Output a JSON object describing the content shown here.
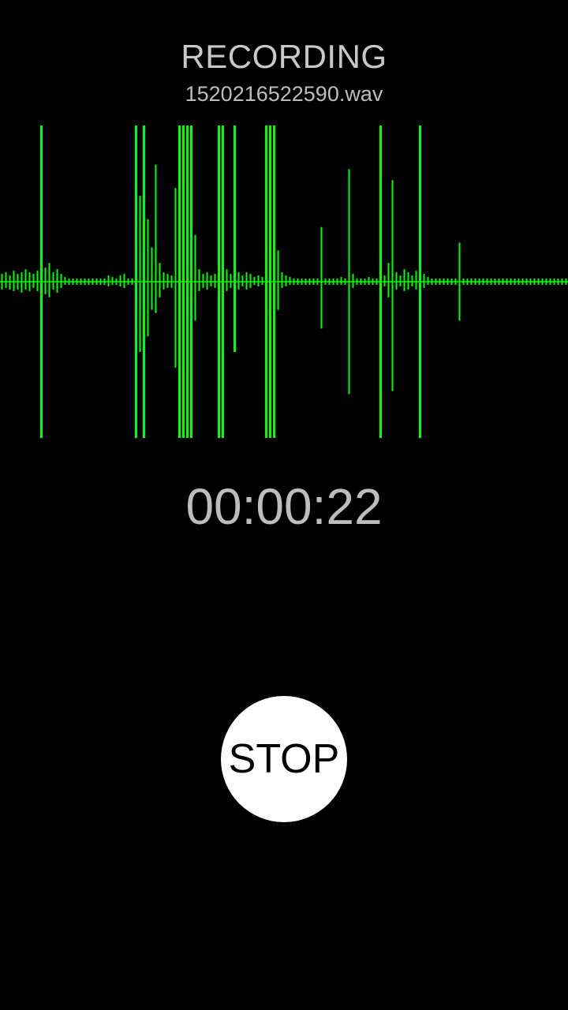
{
  "header": {
    "status": "RECORDING",
    "file_name": "1520216522590.wav"
  },
  "waveform": {
    "color": "#00ff00",
    "peaks": [
      [
        0.05,
        0.05
      ],
      [
        0.06,
        0.04
      ],
      [
        0.04,
        0.05
      ],
      [
        0.07,
        0.06
      ],
      [
        0.05,
        0.05
      ],
      [
        0.06,
        0.07
      ],
      [
        0.08,
        0.05
      ],
      [
        0.06,
        0.06
      ],
      [
        0.05,
        0.04
      ],
      [
        0.07,
        0.06
      ],
      [
        1.0,
        1.0
      ],
      [
        0.09,
        0.08
      ],
      [
        0.12,
        0.1
      ],
      [
        0.06,
        0.05
      ],
      [
        0.08,
        0.07
      ],
      [
        0.05,
        0.04
      ],
      [
        0.03,
        0.02
      ],
      [
        0.02,
        0.02
      ],
      [
        0.02,
        0.02
      ],
      [
        0.02,
        0.02
      ],
      [
        0.02,
        0.02
      ],
      [
        0.02,
        0.02
      ],
      [
        0.02,
        0.02
      ],
      [
        0.02,
        0.02
      ],
      [
        0.02,
        0.02
      ],
      [
        0.02,
        0.02
      ],
      [
        0.02,
        0.02
      ],
      [
        0.04,
        0.03
      ],
      [
        0.03,
        0.02
      ],
      [
        0.02,
        0.02
      ],
      [
        0.04,
        0.03
      ],
      [
        0.05,
        0.04
      ],
      [
        0.02,
        0.02
      ],
      [
        0.02,
        0.02
      ],
      [
        1.0,
        1.0
      ],
      [
        0.55,
        0.45
      ],
      [
        1.0,
        1.0
      ],
      [
        0.4,
        0.35
      ],
      [
        0.22,
        0.18
      ],
      [
        0.75,
        0.2
      ],
      [
        0.12,
        0.1
      ],
      [
        0.06,
        0.05
      ],
      [
        0.05,
        0.04
      ],
      [
        0.04,
        0.04
      ],
      [
        0.6,
        0.55
      ],
      [
        1.0,
        1.0
      ],
      [
        1.0,
        1.0
      ],
      [
        1.0,
        1.0
      ],
      [
        1.0,
        1.0
      ],
      [
        0.3,
        0.25
      ],
      [
        0.08,
        0.06
      ],
      [
        0.05,
        0.04
      ],
      [
        0.06,
        0.05
      ],
      [
        0.04,
        0.03
      ],
      [
        0.05,
        0.04
      ],
      [
        1.0,
        1.0
      ],
      [
        1.0,
        1.0
      ],
      [
        0.08,
        0.06
      ],
      [
        0.05,
        0.04
      ],
      [
        1.0,
        0.45
      ],
      [
        0.06,
        0.05
      ],
      [
        0.04,
        0.03
      ],
      [
        0.06,
        0.05
      ],
      [
        0.05,
        0.04
      ],
      [
        0.03,
        0.02
      ],
      [
        0.04,
        0.03
      ],
      [
        0.03,
        0.02
      ],
      [
        1.0,
        1.0
      ],
      [
        1.0,
        1.0
      ],
      [
        1.0,
        1.0
      ],
      [
        0.2,
        0.18
      ],
      [
        0.06,
        0.04
      ],
      [
        0.04,
        0.03
      ],
      [
        0.03,
        0.02
      ],
      [
        0.02,
        0.02
      ],
      [
        0.02,
        0.02
      ],
      [
        0.02,
        0.02
      ],
      [
        0.02,
        0.02
      ],
      [
        0.02,
        0.02
      ],
      [
        0.02,
        0.02
      ],
      [
        0.02,
        0.02
      ],
      [
        0.35,
        0.3
      ],
      [
        0.02,
        0.02
      ],
      [
        0.02,
        0.02
      ],
      [
        0.02,
        0.02
      ],
      [
        0.02,
        0.02
      ],
      [
        0.03,
        0.02
      ],
      [
        0.02,
        0.02
      ],
      [
        0.72,
        0.72
      ],
      [
        0.05,
        0.04
      ],
      [
        0.02,
        0.02
      ],
      [
        0.02,
        0.02
      ],
      [
        0.02,
        0.02
      ],
      [
        0.03,
        0.02
      ],
      [
        0.02,
        0.02
      ],
      [
        0.02,
        0.02
      ],
      [
        1.0,
        1.0
      ],
      [
        0.04,
        0.03
      ],
      [
        0.12,
        0.1
      ],
      [
        0.65,
        0.7
      ],
      [
        0.06,
        0.05
      ],
      [
        0.04,
        0.03
      ],
      [
        0.08,
        0.06
      ],
      [
        0.06,
        0.05
      ],
      [
        0.04,
        0.03
      ],
      [
        0.07,
        0.05
      ],
      [
        1.0,
        1.0
      ],
      [
        0.05,
        0.04
      ],
      [
        0.03,
        0.02
      ],
      [
        0.02,
        0.02
      ],
      [
        0.02,
        0.02
      ],
      [
        0.02,
        0.02
      ],
      [
        0.02,
        0.02
      ],
      [
        0.02,
        0.02
      ],
      [
        0.02,
        0.02
      ],
      [
        0.02,
        0.02
      ],
      [
        0.25,
        0.25
      ],
      [
        0.02,
        0.02
      ],
      [
        0.02,
        0.02
      ],
      [
        0.02,
        0.02
      ],
      [
        0.02,
        0.02
      ],
      [
        0.02,
        0.02
      ],
      [
        0.02,
        0.02
      ],
      [
        0.02,
        0.02
      ],
      [
        0.02,
        0.02
      ],
      [
        0.02,
        0.02
      ],
      [
        0.02,
        0.02
      ],
      [
        0.02,
        0.02
      ],
      [
        0.02,
        0.02
      ],
      [
        0.02,
        0.02
      ],
      [
        0.02,
        0.02
      ],
      [
        0.02,
        0.02
      ],
      [
        0.02,
        0.02
      ],
      [
        0.02,
        0.02
      ],
      [
        0.02,
        0.02
      ],
      [
        0.02,
        0.02
      ],
      [
        0.02,
        0.02
      ],
      [
        0.02,
        0.02
      ],
      [
        0.02,
        0.02
      ],
      [
        0.02,
        0.02
      ],
      [
        0.02,
        0.02
      ],
      [
        0.02,
        0.02
      ],
      [
        0.02,
        0.02
      ],
      [
        0.02,
        0.02
      ]
    ]
  },
  "timer": {
    "elapsed": "00:00:22"
  },
  "controls": {
    "stop_label": "STOP"
  }
}
